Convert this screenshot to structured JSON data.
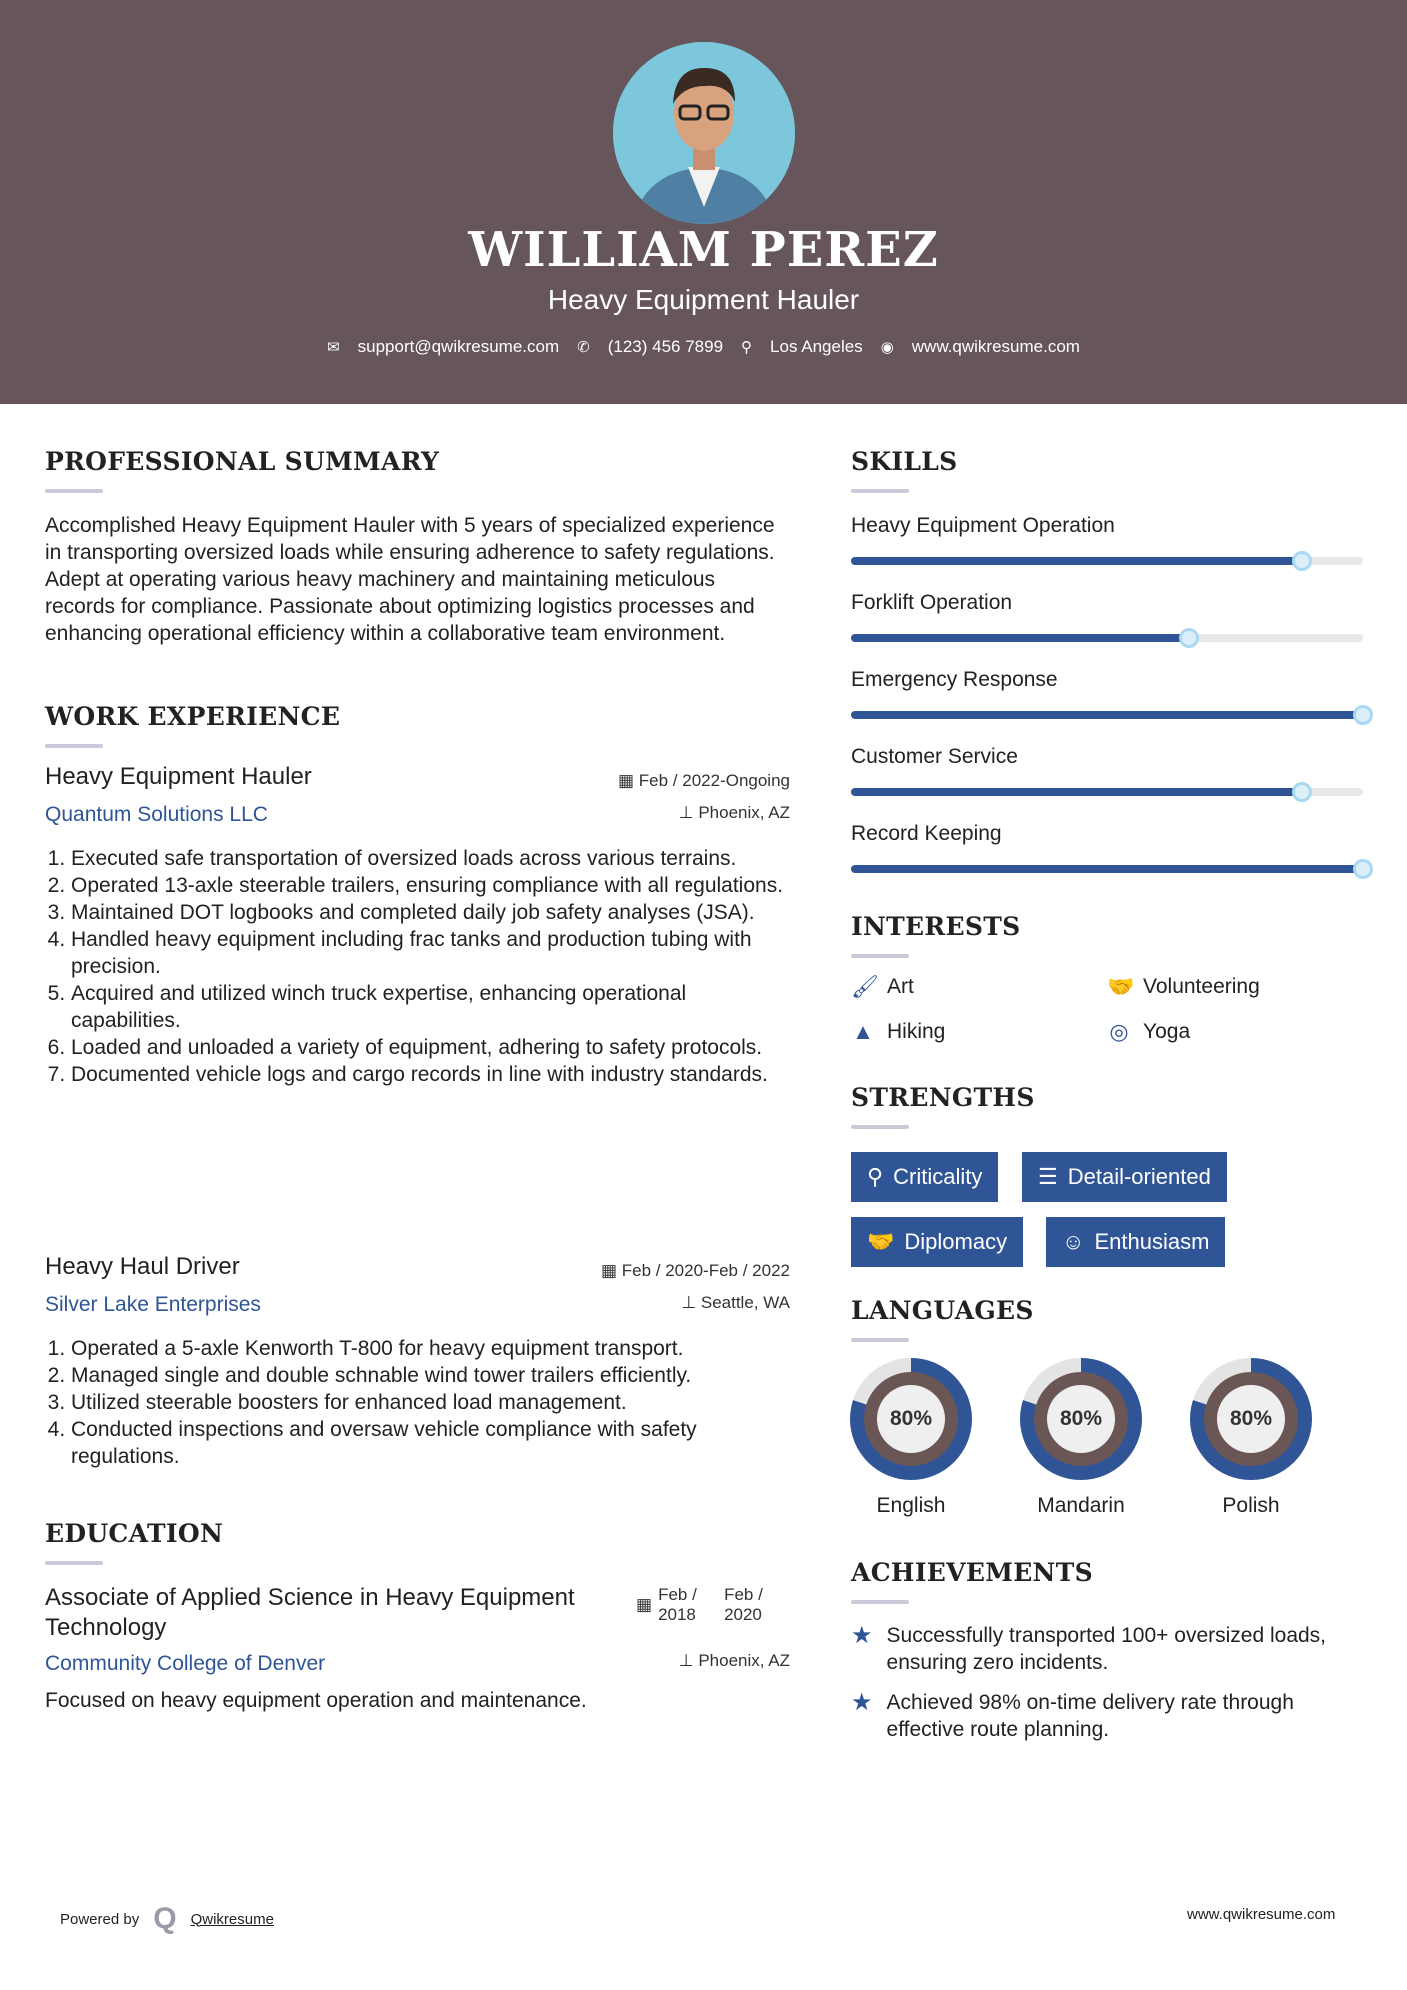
{
  "header": {
    "name": "WILLIAM PEREZ",
    "title": "Heavy Equipment Hauler",
    "email": "support@qwikresume.com",
    "phone": "(123) 456 7899",
    "location": "Los Angeles",
    "website": "www.qwikresume.com"
  },
  "colors": {
    "header_bg": "#66565c",
    "accent": "#2f5597"
  },
  "summary": {
    "heading": "PROFESSIONAL SUMMARY",
    "text": "Accomplished Heavy Equipment Hauler with 5 years of specialized experience in transporting oversized loads while ensuring adherence to safety regulations. Adept at operating various heavy machinery and maintaining meticulous records for compliance. Passionate about optimizing logistics processes and enhancing operational efficiency within a collaborative team environment."
  },
  "experience": {
    "heading": "WORK EXPERIENCE",
    "jobs": [
      {
        "title": "Heavy Equipment Hauler",
        "company": "Quantum Solutions LLC",
        "dates": "Feb / 2022-Ongoing",
        "location": "Phoenix, AZ",
        "bullets": [
          "Executed safe transportation of oversized loads across various terrains.",
          "Operated 13-axle steerable trailers, ensuring compliance with all regulations.",
          "Maintained DOT logbooks and completed daily job safety analyses (JSA).",
          "Handled heavy equipment including frac tanks and production tubing with precision.",
          "Acquired and utilized winch truck expertise, enhancing operational capabilities.",
          "Loaded and unloaded a variety of equipment, adhering to safety protocols.",
          "Documented vehicle logs and cargo records in line with industry standards."
        ]
      },
      {
        "title": "Heavy Haul Driver",
        "company": "Silver Lake Enterprises",
        "dates": "Feb / 2020-Feb / 2022",
        "location": "Seattle, WA",
        "bullets": [
          "Operated a 5-axle Kenworth T-800 for heavy equipment transport.",
          "Managed single and double schnable wind tower trailers efficiently.",
          "Utilized steerable boosters for enhanced load management.",
          "Conducted inspections and oversaw vehicle compliance with safety regulations."
        ]
      }
    ]
  },
  "education": {
    "heading": "EDUCATION",
    "degree": "Associate of Applied Science in Heavy Equipment Technology",
    "school": "Community College of Denver",
    "start": "Feb / 2018",
    "end": "Feb / 2020",
    "location": "Phoenix, AZ",
    "description": "Focused on heavy equipment operation and maintenance."
  },
  "skills": {
    "heading": "SKILLS",
    "items": [
      {
        "name": "Heavy Equipment Operation",
        "level": 88
      },
      {
        "name": "Forklift Operation",
        "level": 66
      },
      {
        "name": "Emergency Response",
        "level": 100
      },
      {
        "name": "Customer Service",
        "level": 88
      },
      {
        "name": "Record Keeping",
        "level": 100
      }
    ]
  },
  "interests": {
    "heading": "INTERESTS",
    "items": [
      {
        "label": "Art",
        "icon": "paintbrush-icon"
      },
      {
        "label": "Volunteering",
        "icon": "handshake-icon"
      },
      {
        "label": "Hiking",
        "icon": "tree-icon"
      },
      {
        "label": "Yoga",
        "icon": "life-ring-icon"
      }
    ]
  },
  "strengths": {
    "heading": "STRENGTHS",
    "items": [
      {
        "label": "Criticality",
        "icon": "search-icon"
      },
      {
        "label": "Detail-oriented",
        "icon": "list-icon"
      },
      {
        "label": "Diplomacy",
        "icon": "handshake-icon"
      },
      {
        "label": "Enthusiasm",
        "icon": "smile-icon"
      }
    ]
  },
  "languages": {
    "heading": "LANGUAGES",
    "items": [
      {
        "name": "English",
        "percent": 80,
        "label": "80%"
      },
      {
        "name": "Mandarin",
        "percent": 80,
        "label": "80%"
      },
      {
        "name": "Polish",
        "percent": 80,
        "label": "80%"
      }
    ]
  },
  "achievements": {
    "heading": "ACHIEVEMENTS",
    "items": [
      "Successfully transported 100+ oversized loads, ensuring zero incidents.",
      "Achieved 98% on-time delivery rate through effective route planning."
    ]
  },
  "footer": {
    "powered_by": "Powered by",
    "brand": "Qwikresume",
    "website": "www.qwikresume.com"
  }
}
